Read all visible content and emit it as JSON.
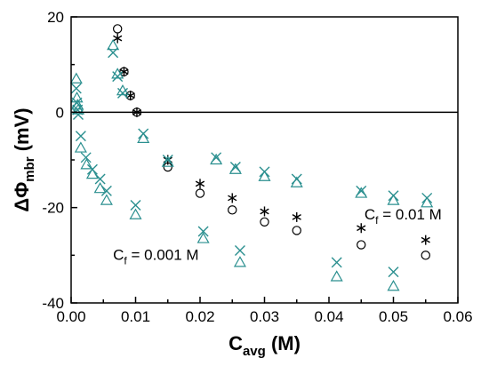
{
  "chart_data": {
    "type": "scatter",
    "xlabel_main": "C",
    "xlabel_sub": "avg",
    "xlabel_unit": " (M)",
    "ylabel_main": "ΔΦ",
    "ylabel_sub": "mbr",
    "ylabel_unit": " (mV)",
    "xlim": [
      0,
      0.06
    ],
    "ylim": [
      -40,
      20
    ],
    "x_ticks": [
      0.0,
      0.01,
      0.02,
      0.03,
      0.04,
      0.05,
      0.06
    ],
    "x_tick_labels": [
      "0.00",
      "0.01",
      "0.02",
      "0.03",
      "0.04",
      "0.05",
      "0.06"
    ],
    "y_ticks": [
      -40,
      -20,
      0,
      20
    ],
    "y_tick_labels": [
      "-40",
      "-20",
      "0",
      "20"
    ],
    "reference_line_y": 0,
    "grid": false,
    "colors": {
      "teal": "#2a8f8f",
      "black": "#000000"
    },
    "annotations": [
      {
        "main": "C",
        "sub": "f",
        "rest": " = 0.001 M",
        "x": 0.0065,
        "y": -31
      },
      {
        "main": "C",
        "sub": "f",
        "rest": " = 0.01 M",
        "x": 0.0455,
        "y": -22.5
      }
    ],
    "series": [
      {
        "marker": "circle",
        "color": "#000000",
        "points": [
          [
            0.0072,
            17.5
          ],
          [
            0.0082,
            8.5
          ],
          [
            0.0092,
            3.5
          ],
          [
            0.0102,
            0.0
          ],
          [
            0.015,
            -11.5
          ],
          [
            0.02,
            -17.0
          ],
          [
            0.025,
            -20.5
          ],
          [
            0.03,
            -23.0
          ],
          [
            0.035,
            -24.8
          ],
          [
            0.045,
            -27.8
          ],
          [
            0.055,
            -30.0
          ]
        ]
      },
      {
        "marker": "star",
        "color": "#000000",
        "points": [
          [
            0.0072,
            15.5
          ],
          [
            0.0082,
            8.5
          ],
          [
            0.0092,
            3.5
          ],
          [
            0.0102,
            0.0
          ],
          [
            0.015,
            -10.0
          ],
          [
            0.02,
            -15.0
          ],
          [
            0.025,
            -18.0
          ],
          [
            0.03,
            -20.8
          ],
          [
            0.035,
            -22.0
          ],
          [
            0.045,
            -24.3
          ],
          [
            0.055,
            -26.8
          ]
        ]
      },
      {
        "marker": "cross",
        "color": "#2a8f8f",
        "points": [
          [
            0.0008,
            5.0
          ],
          [
            0.0009,
            2.0
          ],
          [
            0.001,
            0.5
          ],
          [
            0.0011,
            -0.5
          ],
          [
            0.0015,
            -5.0
          ],
          [
            0.0023,
            -9.5
          ],
          [
            0.0033,
            -12.0
          ],
          [
            0.0045,
            -14.0
          ],
          [
            0.0055,
            -16.5
          ],
          [
            0.0065,
            12.5
          ],
          [
            0.0072,
            7.5
          ],
          [
            0.008,
            4.0
          ],
          [
            0.01,
            -19.5
          ],
          [
            0.0112,
            -4.5
          ],
          [
            0.015,
            -10.0
          ],
          [
            0.0205,
            -25.0
          ],
          [
            0.0225,
            -9.5
          ],
          [
            0.0255,
            -11.5
          ],
          [
            0.0262,
            -29.0
          ],
          [
            0.03,
            -12.5
          ],
          [
            0.035,
            -14.0
          ],
          [
            0.0412,
            -31.5
          ],
          [
            0.045,
            -16.5
          ],
          [
            0.05,
            -17.5
          ],
          [
            0.05,
            -33.5
          ],
          [
            0.0552,
            -18.0
          ]
        ]
      },
      {
        "marker": "triangle",
        "color": "#2a8f8f",
        "points": [
          [
            0.0008,
            7.0
          ],
          [
            0.0009,
            3.0
          ],
          [
            0.001,
            1.5
          ],
          [
            0.0011,
            0.5
          ],
          [
            0.0015,
            -7.5
          ],
          [
            0.0024,
            -11.0
          ],
          [
            0.0033,
            -13.0
          ],
          [
            0.0045,
            -16.0
          ],
          [
            0.0055,
            -18.5
          ],
          [
            0.0065,
            14.0
          ],
          [
            0.0072,
            8.0
          ],
          [
            0.008,
            4.5
          ],
          [
            0.01,
            -21.5
          ],
          [
            0.0112,
            -5.5
          ],
          [
            0.015,
            -10.5
          ],
          [
            0.0205,
            -26.5
          ],
          [
            0.0225,
            -10.0
          ],
          [
            0.0255,
            -12.0
          ],
          [
            0.0262,
            -31.5
          ],
          [
            0.03,
            -13.5
          ],
          [
            0.035,
            -14.8
          ],
          [
            0.0412,
            -34.5
          ],
          [
            0.045,
            -17.0
          ],
          [
            0.05,
            -18.5
          ],
          [
            0.05,
            -36.5
          ],
          [
            0.0552,
            -19.0
          ]
        ]
      }
    ]
  }
}
